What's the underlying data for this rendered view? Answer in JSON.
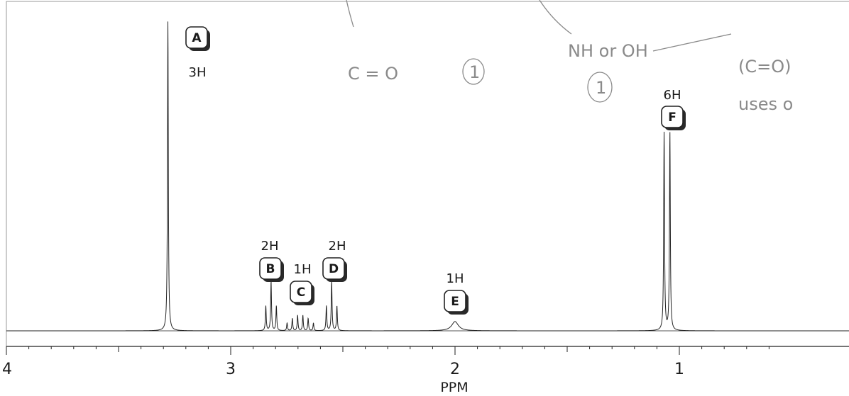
{
  "chart_data": {
    "type": "line",
    "title": "",
    "xlabel": "PPM",
    "ylabel": "",
    "x_reversed": true,
    "xlim": [
      4,
      0.6
    ],
    "x_ticks": [
      4,
      3,
      2,
      1
    ],
    "x_tick_labels": [
      "4",
      "3",
      "2",
      "1"
    ],
    "grid": false,
    "peaks": [
      {
        "label": "A",
        "integration": "3H",
        "ppm": 3.28,
        "height": 1.0,
        "multiplicity": "singlet"
      },
      {
        "label": "B",
        "integration": "2H",
        "ppm": 2.82,
        "height": 0.16,
        "multiplicity": "triplet"
      },
      {
        "label": "C",
        "integration": "1H",
        "ppm": 2.69,
        "height": 0.05,
        "multiplicity": "multiplet"
      },
      {
        "label": "D",
        "integration": "2H",
        "ppm": 2.55,
        "height": 0.16,
        "multiplicity": "triplet"
      },
      {
        "label": "E",
        "integration": "1H",
        "ppm": 2.0,
        "height": 0.03,
        "multiplicity": "broad singlet"
      },
      {
        "label": "F",
        "integration": "6H",
        "ppm": 1.055,
        "height": 0.64,
        "multiplicity": "doublet"
      }
    ],
    "annotations": {
      "handwritten": [
        "C = O",
        "1",
        "NH or OH",
        "1",
        "(C=O)",
        "uses o"
      ]
    }
  }
}
